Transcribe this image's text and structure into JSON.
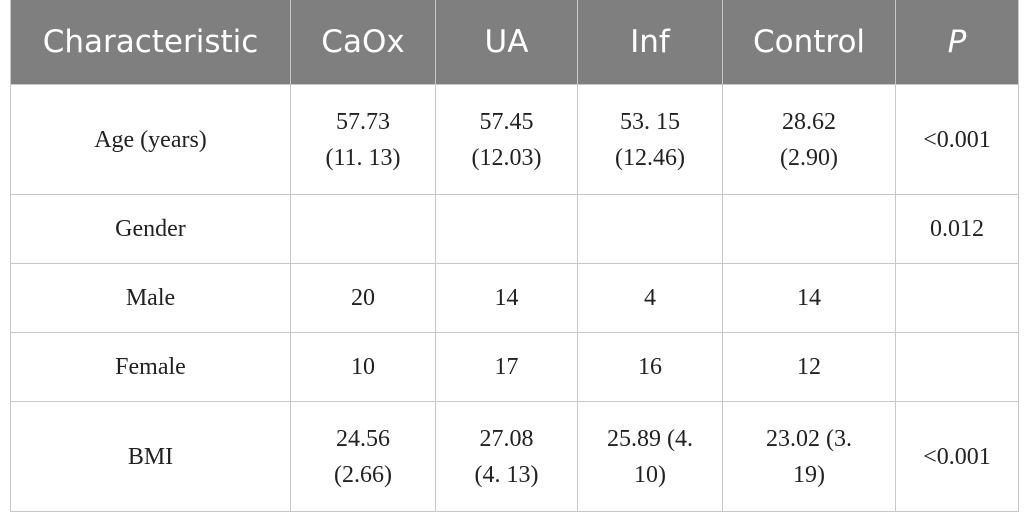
{
  "table": {
    "header": [
      "Characteristic",
      "CaOx",
      "UA",
      "Inf",
      "Control",
      "P"
    ],
    "rows": [
      [
        "Age (years)",
        [
          "57.73",
          "(11. 13)"
        ],
        [
          "57.45",
          "(12.03)"
        ],
        [
          "53. 15",
          "(12.46)"
        ],
        [
          "28.62",
          "(2.90)"
        ],
        "<0.001"
      ],
      [
        "Gender",
        null,
        null,
        null,
        null,
        "0.012"
      ],
      [
        "Male",
        "20",
        "14",
        "4",
        "14",
        null
      ],
      [
        "Female",
        "10",
        "17",
        "16",
        "12",
        null
      ],
      [
        "BMI",
        [
          "24.56",
          "(2.66)"
        ],
        [
          "27.08",
          "(4. 13)"
        ],
        [
          "25.89 (4.",
          "10)"
        ],
        [
          "23.02 (3.",
          "19)"
        ],
        "<0.001"
      ]
    ]
  }
}
